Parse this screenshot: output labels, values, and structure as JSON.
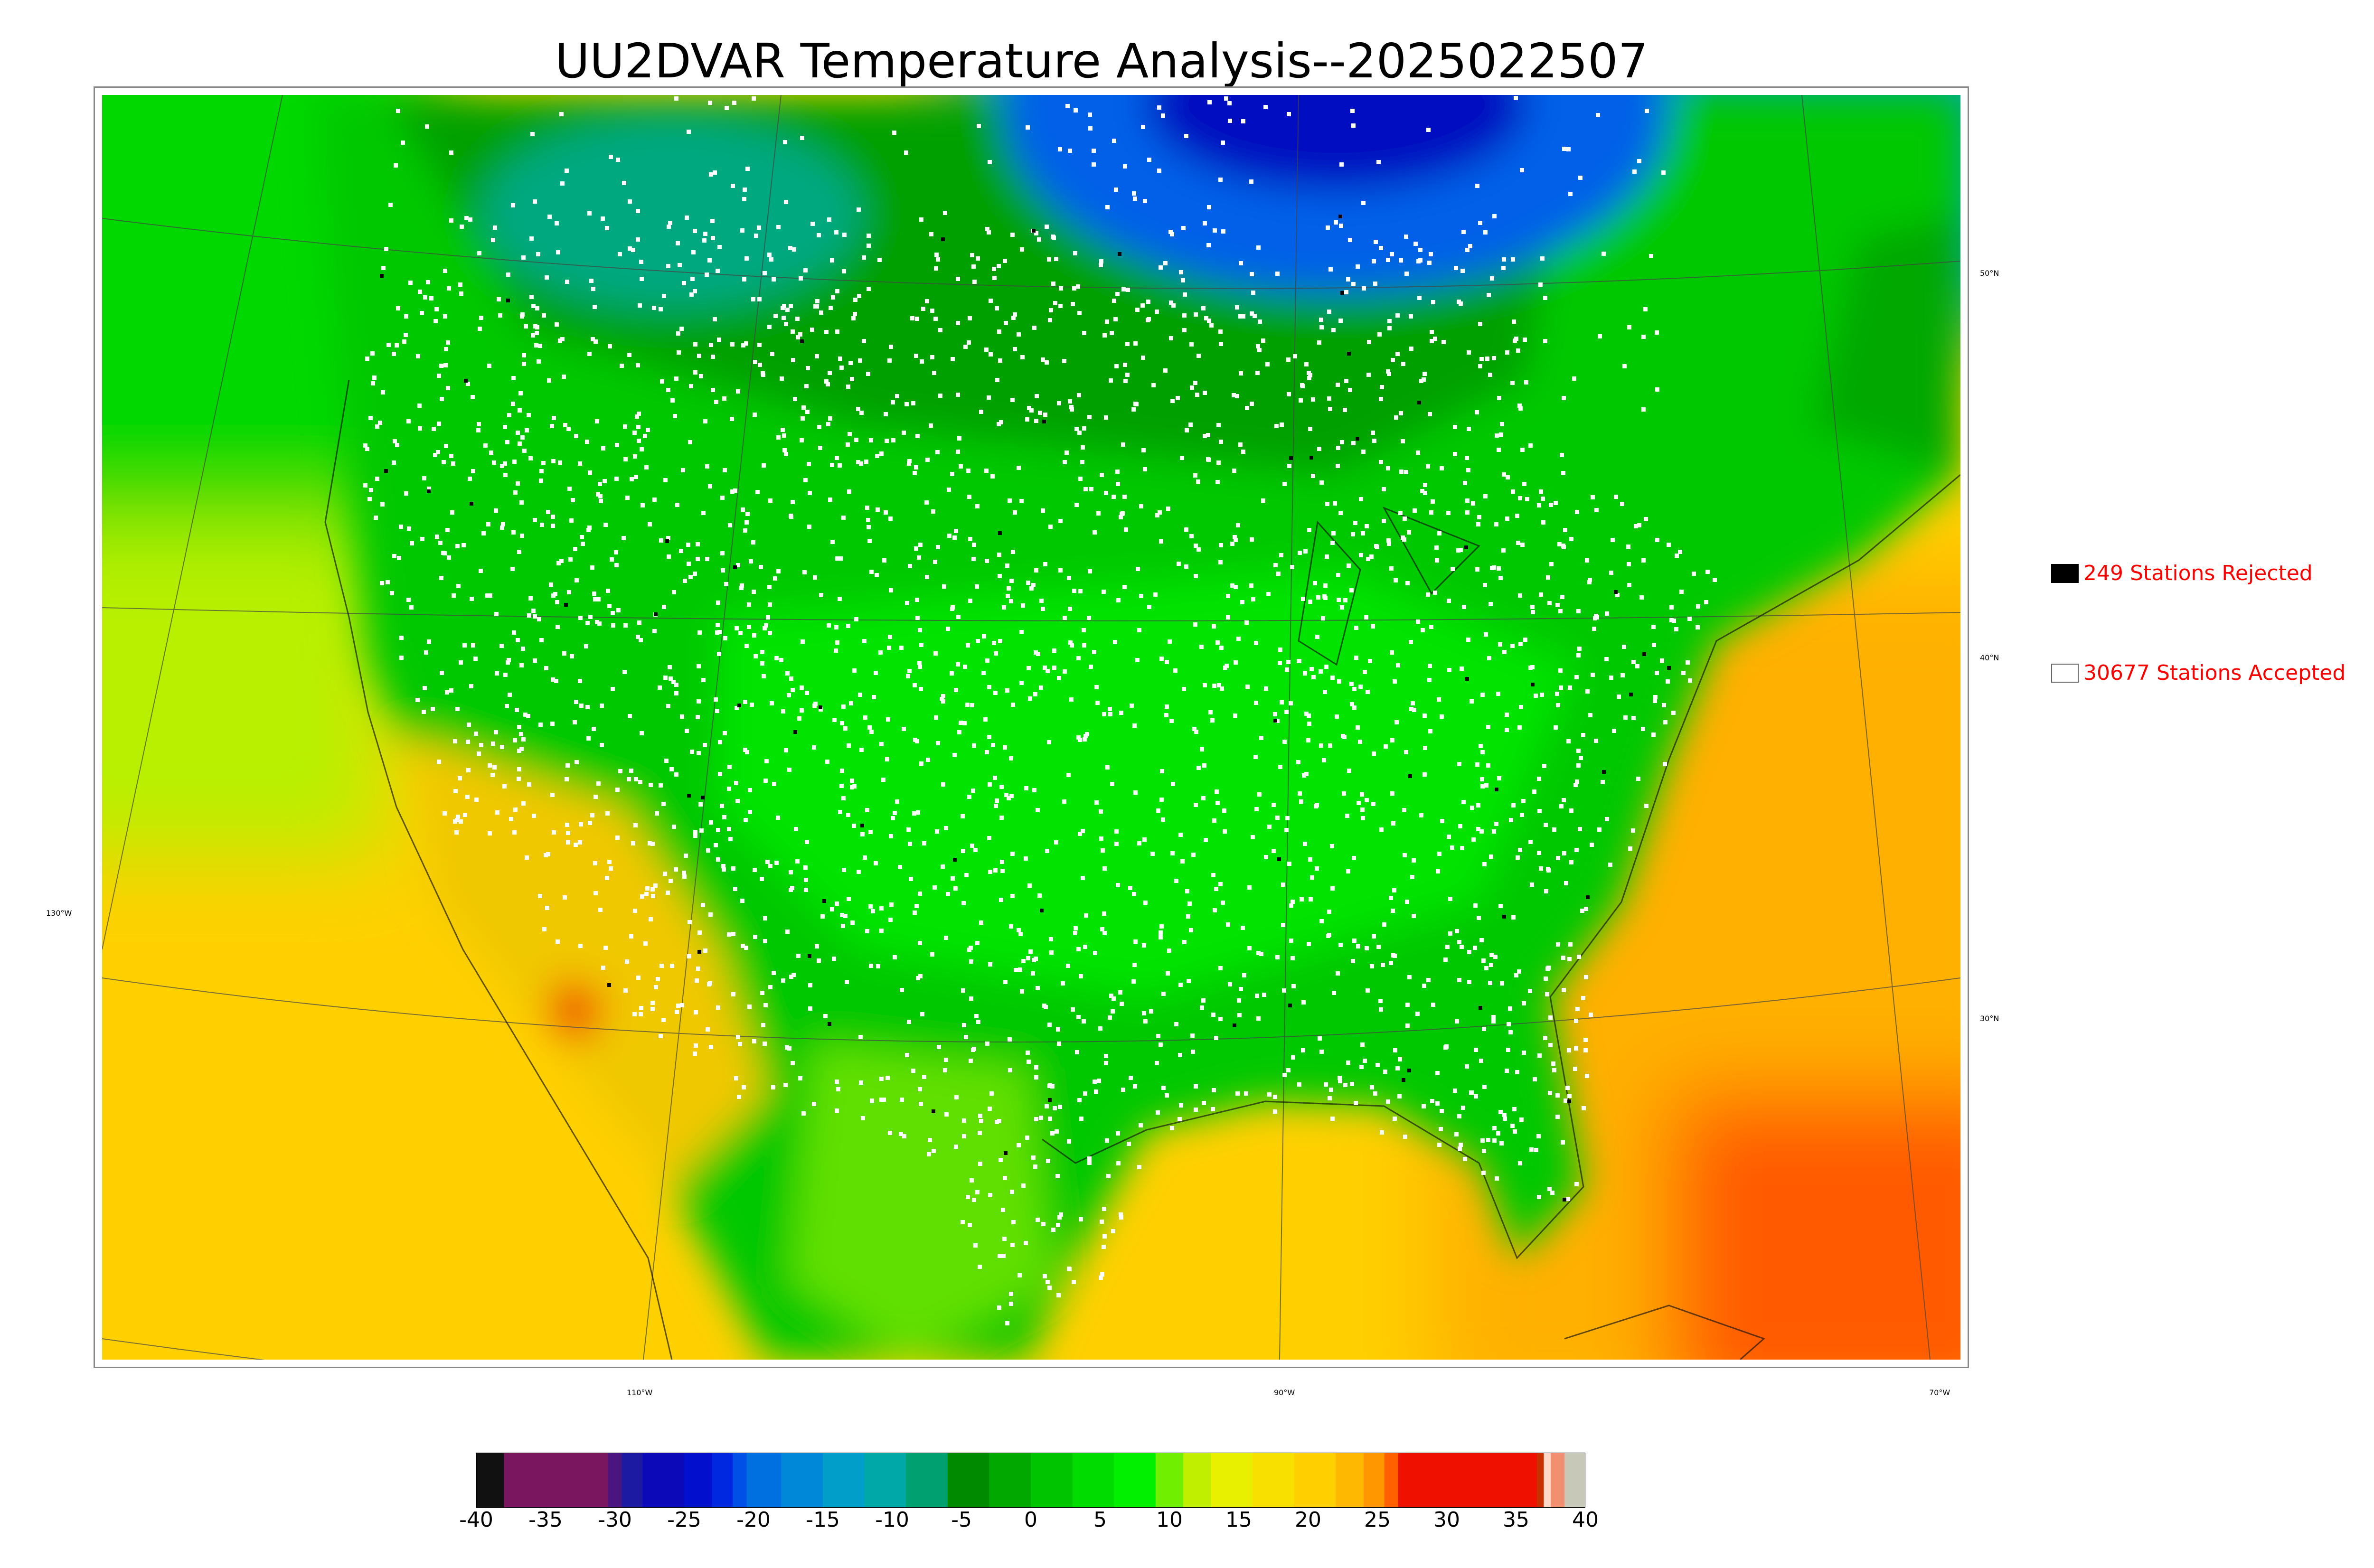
{
  "title": "UU2DVAR Temperature Analysis--2025022507",
  "map": {
    "lat_labels": [
      "50°N",
      "40°N",
      "30°N"
    ],
    "lon_labels": [
      "130°W",
      "110°W",
      "90°W",
      "70°W"
    ]
  },
  "legend": {
    "rejected": {
      "label": "249 Stations Rejected",
      "count": 249,
      "color": "#000000"
    },
    "accepted": {
      "label": "30677 Stations Accepted",
      "count": 30677,
      "color": "#ffffff"
    }
  },
  "colorbar": {
    "min": -40,
    "max": 40,
    "ticks": [
      "-40",
      "-35",
      "-30",
      "-25",
      "-20",
      "-15",
      "-10",
      "-5",
      "0",
      "5",
      "10",
      "15",
      "20",
      "25",
      "30",
      "35",
      "40"
    ],
    "stops": [
      {
        "from": -40,
        "to": -38,
        "color": "#111111"
      },
      {
        "from": -38,
        "to": -30.5,
        "color": "#7a1560"
      },
      {
        "from": -30.5,
        "to": -29.5,
        "color": "#4b1580"
      },
      {
        "from": -29.5,
        "to": -28,
        "color": "#1c1aa0"
      },
      {
        "from": -28,
        "to": -25,
        "color": "#0a0ab8"
      },
      {
        "from": -25,
        "to": -23,
        "color": "#0010cc"
      },
      {
        "from": -23,
        "to": -21.5,
        "color": "#0028e0"
      },
      {
        "from": -21.5,
        "to": -20.5,
        "color": "#0050e8"
      },
      {
        "from": -20.5,
        "to": -18,
        "color": "#0070e0"
      },
      {
        "from": -18,
        "to": -15,
        "color": "#0088d8"
      },
      {
        "from": -15,
        "to": -12,
        "color": "#009ec8"
      },
      {
        "from": -12,
        "to": -9,
        "color": "#00a8a8"
      },
      {
        "from": -9,
        "to": -6,
        "color": "#00a070"
      },
      {
        "from": -6,
        "to": -3,
        "color": "#008a00"
      },
      {
        "from": -3,
        "to": 0,
        "color": "#00a800"
      },
      {
        "from": 0,
        "to": 3,
        "color": "#00c400"
      },
      {
        "from": 3,
        "to": 6,
        "color": "#00dc00"
      },
      {
        "from": 6,
        "to": 9,
        "color": "#00f000"
      },
      {
        "from": 9,
        "to": 11,
        "color": "#70f000"
      },
      {
        "from": 11,
        "to": 13,
        "color": "#c0f000"
      },
      {
        "from": 13,
        "to": 16,
        "color": "#e8f000"
      },
      {
        "from": 16,
        "to": 19,
        "color": "#f8e000"
      },
      {
        "from": 19,
        "to": 22,
        "color": "#ffd000"
      },
      {
        "from": 22,
        "to": 24,
        "color": "#ffb800"
      },
      {
        "from": 24,
        "to": 25.5,
        "color": "#ff9800"
      },
      {
        "from": 25.5,
        "to": 26.5,
        "color": "#ff6000"
      },
      {
        "from": 26.5,
        "to": 36.5,
        "color": "#f01000"
      },
      {
        "from": 36.5,
        "to": 37,
        "color": "#c83000"
      },
      {
        "from": 37,
        "to": 37.5,
        "color": "#ffd8c8"
      },
      {
        "from": 37.5,
        "to": 38.5,
        "color": "#f09070"
      },
      {
        "from": 38.5,
        "to": 40,
        "color": "#c8c8b8"
      }
    ]
  }
}
